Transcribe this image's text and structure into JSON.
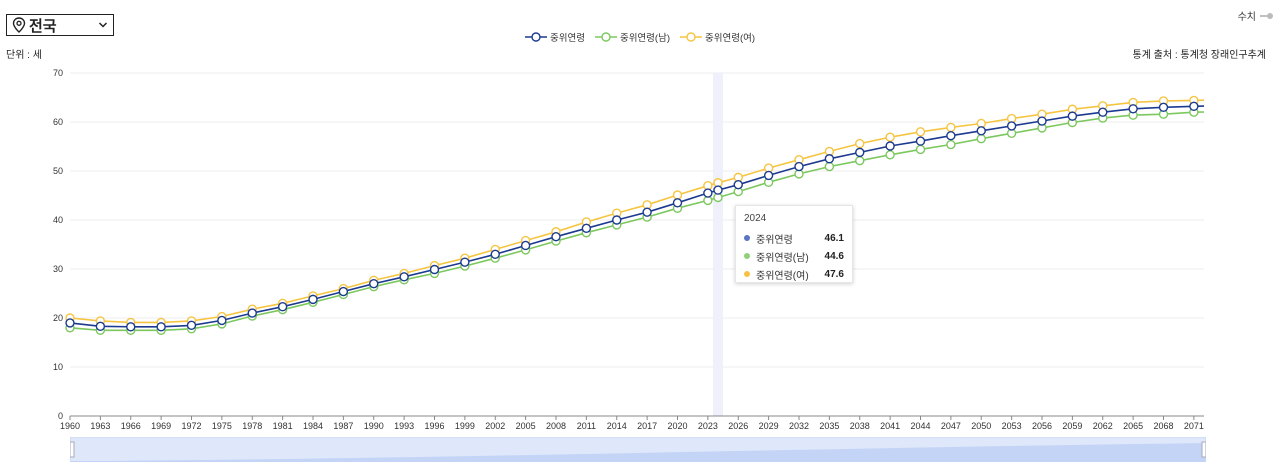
{
  "region_select": {
    "value": "전국"
  },
  "toggle": {
    "label": "수치"
  },
  "unit_label": "단위 : 세",
  "source_label": "통계 출처 : 통계청 장래인구추계",
  "tooltip": {
    "year": "2024",
    "rows": [
      {
        "name": "중위연령",
        "value": "46.1",
        "color": "#5b74c4"
      },
      {
        "name": "중위연령(남)",
        "value": "44.6",
        "color": "#8fd07a"
      },
      {
        "name": "중위연령(여)",
        "value": "47.6",
        "color": "#f7c244"
      }
    ]
  },
  "chart_data": {
    "type": "line",
    "title": "",
    "xlabel": "",
    "ylabel": "",
    "ylim": [
      0,
      70
    ],
    "yticks": [
      0,
      10,
      20,
      30,
      40,
      50,
      60,
      70
    ],
    "x_range": [
      1960,
      2072
    ],
    "xticks": [
      1960,
      1963,
      1966,
      1969,
      1972,
      1975,
      1978,
      1981,
      1984,
      1987,
      1990,
      1993,
      1996,
      1999,
      2002,
      2005,
      2008,
      2011,
      2014,
      2017,
      2020,
      2023,
      2026,
      2029,
      2032,
      2035,
      2038,
      2041,
      2044,
      2047,
      2050,
      2053,
      2056,
      2059,
      2062,
      2065,
      2068,
      2071
    ],
    "grid": true,
    "legend": "top-center",
    "highlight_x": 2024,
    "x": [
      1960,
      1963,
      1966,
      1969,
      1972,
      1975,
      1978,
      1981,
      1984,
      1987,
      1990,
      1993,
      1996,
      1999,
      2002,
      2005,
      2008,
      2011,
      2014,
      2017,
      2020,
      2023,
      2024,
      2026,
      2029,
      2032,
      2035,
      2038,
      2041,
      2044,
      2047,
      2050,
      2053,
      2056,
      2059,
      2062,
      2065,
      2068,
      2071
    ],
    "series": [
      {
        "name": "중위연령",
        "color": "#1c3a8f",
        "values": [
          19.0,
          18.3,
          18.2,
          18.2,
          18.5,
          19.5,
          21.0,
          22.3,
          23.8,
          25.4,
          27.0,
          28.4,
          29.9,
          31.4,
          33.0,
          34.8,
          36.6,
          38.3,
          40.0,
          41.6,
          43.5,
          45.5,
          46.1,
          47.2,
          49.1,
          50.9,
          52.5,
          53.8,
          55.1,
          56.1,
          57.2,
          58.2,
          59.2,
          60.2,
          61.2,
          62.0,
          62.7,
          63.0,
          63.2
        ]
      },
      {
        "name": "중위연령(남)",
        "color": "#7cc85e",
        "values": [
          18.0,
          17.5,
          17.5,
          17.5,
          17.8,
          18.8,
          20.4,
          21.7,
          23.2,
          24.8,
          26.4,
          27.8,
          29.1,
          30.6,
          32.2,
          33.9,
          35.7,
          37.4,
          39.0,
          40.6,
          42.4,
          44.0,
          44.6,
          45.8,
          47.7,
          49.4,
          50.9,
          52.1,
          53.3,
          54.4,
          55.4,
          56.6,
          57.7,
          58.8,
          59.9,
          60.8,
          61.4,
          61.6,
          62.0
        ]
      },
      {
        "name": "중위연령(여)",
        "color": "#f5c542",
        "values": [
          20.0,
          19.4,
          19.1,
          19.1,
          19.4,
          20.3,
          21.8,
          23.0,
          24.5,
          26.0,
          27.7,
          29.1,
          30.7,
          32.2,
          34.0,
          35.8,
          37.6,
          39.6,
          41.4,
          43.1,
          45.1,
          47.0,
          47.6,
          48.7,
          50.6,
          52.3,
          54.0,
          55.6,
          56.9,
          58.0,
          58.9,
          59.7,
          60.7,
          61.6,
          62.6,
          63.3,
          64.0,
          64.3,
          64.4
        ]
      }
    ]
  }
}
